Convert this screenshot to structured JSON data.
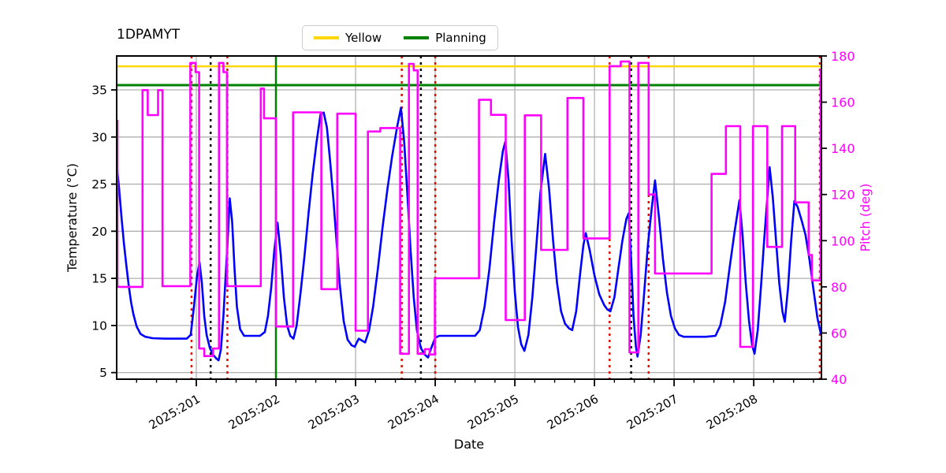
{
  "title": "1DPAMYT",
  "legend": {
    "items": [
      {
        "label": "Yellow",
        "color": "#ffd700"
      },
      {
        "label": "Planning",
        "color": "#008000"
      }
    ]
  },
  "axes": {
    "x": {
      "label": "Date",
      "range": [
        200.0,
        208.85
      ],
      "major_ticks": [
        201,
        202,
        203,
        204,
        205,
        206,
        207,
        208
      ],
      "tick_labels": [
        "2025:201",
        "2025:202",
        "2025:203",
        "2025:204",
        "2025:205",
        "2025:206",
        "2025:207",
        "2025:208"
      ],
      "minor_step": 0.25
    },
    "y_left": {
      "label": "Temperature (°C)",
      "range": [
        4.3,
        38.6
      ],
      "ticks": [
        5,
        10,
        15,
        20,
        25,
        30,
        35
      ],
      "color": "#000000"
    },
    "y_right": {
      "label": "Pitch (deg)",
      "range": [
        40,
        180
      ],
      "ticks": [
        40,
        60,
        80,
        100,
        120,
        140,
        160,
        180
      ],
      "color": "#ff00ff"
    }
  },
  "chart_data": {
    "type": "line",
    "series": [
      {
        "name": "Temperature",
        "axis": "left",
        "color": "#0000ff",
        "mode": "linear",
        "x": [
          200.0,
          200.03,
          200.06,
          200.09,
          200.12,
          200.15,
          200.18,
          200.21,
          200.25,
          200.3,
          200.36,
          200.45,
          200.6,
          200.75,
          200.88,
          200.93,
          200.97,
          201.01,
          201.04,
          201.07,
          201.1,
          201.13,
          201.17,
          201.21,
          201.25,
          201.28,
          201.31,
          201.34,
          201.37,
          201.4,
          201.42,
          201.45,
          201.48,
          201.51,
          201.55,
          201.6,
          201.7,
          201.8,
          201.86,
          201.9,
          201.94,
          201.98,
          202.02,
          202.06,
          202.1,
          202.14,
          202.18,
          202.22,
          202.26,
          202.31,
          202.36,
          202.41,
          202.46,
          202.51,
          202.56,
          202.6,
          202.64,
          202.68,
          202.72,
          202.76,
          202.8,
          202.85,
          202.9,
          202.95,
          202.99,
          203.04,
          203.08,
          203.12,
          203.17,
          203.22,
          203.28,
          203.34,
          203.4,
          203.46,
          203.52,
          203.57,
          203.61,
          203.65,
          203.69,
          203.73,
          203.77,
          203.82,
          203.87,
          203.91,
          203.95,
          204.0,
          204.05,
          204.2,
          204.35,
          204.5,
          204.56,
          204.62,
          204.68,
          204.74,
          204.8,
          204.85,
          204.88,
          204.92,
          204.96,
          205.0,
          205.04,
          205.08,
          205.12,
          205.17,
          205.22,
          205.27,
          205.32,
          205.38,
          205.43,
          205.48,
          205.53,
          205.58,
          205.63,
          205.68,
          205.72,
          205.77,
          205.82,
          205.86,
          205.89,
          205.94,
          206.0,
          206.06,
          206.12,
          206.16,
          206.2,
          206.25,
          206.3,
          206.35,
          206.4,
          206.43,
          206.46,
          206.49,
          206.52,
          206.54,
          206.58,
          206.62,
          206.67,
          206.72,
          206.76,
          206.81,
          206.86,
          206.91,
          206.96,
          207.01,
          207.06,
          207.12,
          207.25,
          207.4,
          207.52,
          207.58,
          207.64,
          207.7,
          207.76,
          207.82,
          207.86,
          207.9,
          207.94,
          207.98,
          208.01,
          208.05,
          208.09,
          208.13,
          208.17,
          208.2,
          208.24,
          208.28,
          208.32,
          208.36,
          208.39,
          208.43,
          208.47,
          208.51,
          208.55,
          208.6,
          208.65,
          208.7,
          208.75,
          208.8,
          208.84,
          208.85
        ],
        "y": [
          27.1,
          24.6,
          21.5,
          18.8,
          16.5,
          14.3,
          12.5,
          11.2,
          9.9,
          9.1,
          8.8,
          8.65,
          8.6,
          8.6,
          8.6,
          9.0,
          12.0,
          15.3,
          16.7,
          14.5,
          11.0,
          9.0,
          7.6,
          6.9,
          6.5,
          6.3,
          7.5,
          11.0,
          15.5,
          20.0,
          23.5,
          21.0,
          16.0,
          12.0,
          9.6,
          8.9,
          8.9,
          8.9,
          9.3,
          11.0,
          14.0,
          18.0,
          20.9,
          17.5,
          13.0,
          10.0,
          8.9,
          8.6,
          10.0,
          13.5,
          17.5,
          22.0,
          26.0,
          29.5,
          32.4,
          32.6,
          31.0,
          27.5,
          23.5,
          19.0,
          14.5,
          10.5,
          8.5,
          7.9,
          7.75,
          8.6,
          8.4,
          8.2,
          9.5,
          12.0,
          16.0,
          20.5,
          24.5,
          28.0,
          31.0,
          33.1,
          29.5,
          24.0,
          18.0,
          13.0,
          9.5,
          7.6,
          6.9,
          6.6,
          7.6,
          8.7,
          8.9,
          8.9,
          8.9,
          8.9,
          9.5,
          12.0,
          16.0,
          21.0,
          25.5,
          28.5,
          29.5,
          25.5,
          19.0,
          13.5,
          9.8,
          8.0,
          7.3,
          9.0,
          13.0,
          18.5,
          24.0,
          28.2,
          24.5,
          19.0,
          14.5,
          11.5,
          10.2,
          9.7,
          9.5,
          11.5,
          15.5,
          18.5,
          19.8,
          18.0,
          15.3,
          13.3,
          12.2,
          11.7,
          11.5,
          13.0,
          16.0,
          19.0,
          21.3,
          21.9,
          17.0,
          11.0,
          7.8,
          6.7,
          9.0,
          13.0,
          18.5,
          22.5,
          25.4,
          21.5,
          17.0,
          13.5,
          11.0,
          9.7,
          9.0,
          8.8,
          8.8,
          8.8,
          8.9,
          10.0,
          12.5,
          16.3,
          20.0,
          23.3,
          19.5,
          14.5,
          10.5,
          7.9,
          7.0,
          9.5,
          14.0,
          19.0,
          23.5,
          26.8,
          23.5,
          19.0,
          14.5,
          11.5,
          10.4,
          14.0,
          19.0,
          23.2,
          22.6,
          21.2,
          19.6,
          17.0,
          13.8,
          10.8,
          9.2,
          9.0
        ]
      },
      {
        "name": "Pitch",
        "axis": "right",
        "color": "#ff00ff",
        "mode": "step-post",
        "end_x": 208.85,
        "steps": [
          [
            200.0,
            152
          ],
          [
            200.01,
            80
          ],
          [
            200.325,
            165.2
          ],
          [
            200.39,
            154.4
          ],
          [
            200.52,
            165.2
          ],
          [
            200.575,
            80.3
          ],
          [
            200.925,
            177
          ],
          [
            200.99,
            173
          ],
          [
            201.035,
            53.3
          ],
          [
            201.1,
            50
          ],
          [
            201.21,
            53.3
          ],
          [
            201.285,
            177
          ],
          [
            201.34,
            173
          ],
          [
            201.385,
            80.3
          ],
          [
            201.81,
            165.9
          ],
          [
            201.85,
            153
          ],
          [
            202.0,
            62.8
          ],
          [
            202.215,
            155.6
          ],
          [
            202.57,
            79
          ],
          [
            202.77,
            155
          ],
          [
            203.0,
            61
          ],
          [
            203.155,
            147.3
          ],
          [
            203.31,
            148.8
          ],
          [
            203.56,
            51
          ],
          [
            203.67,
            176.6
          ],
          [
            203.73,
            173.8
          ],
          [
            203.78,
            51
          ],
          [
            203.87,
            53
          ],
          [
            203.93,
            50.7
          ],
          [
            203.995,
            83.7
          ],
          [
            204.55,
            161
          ],
          [
            204.7,
            154.5
          ],
          [
            204.885,
            65.6
          ],
          [
            205.125,
            154.3
          ],
          [
            205.33,
            96
          ],
          [
            205.66,
            161.8
          ],
          [
            205.86,
            101
          ],
          [
            206.19,
            175.6
          ],
          [
            206.33,
            177.6
          ],
          [
            206.44,
            51.6
          ],
          [
            206.55,
            177
          ],
          [
            206.68,
            120
          ],
          [
            206.76,
            85.8
          ],
          [
            207.47,
            128.9
          ],
          [
            207.65,
            149.6
          ],
          [
            207.83,
            54
          ],
          [
            207.99,
            149.6
          ],
          [
            208.17,
            97.3
          ],
          [
            208.355,
            149.6
          ],
          [
            208.52,
            116.6
          ],
          [
            208.69,
            93.8
          ],
          [
            208.73,
            82.8
          ],
          [
            208.84,
            174
          ]
        ]
      }
    ],
    "hlines": [
      {
        "name": "Yellow",
        "value": 37.5,
        "axis": "left",
        "color": "#ffd700",
        "style": "solid",
        "width": 2.5
      },
      {
        "name": "Planning",
        "value": 35.5,
        "axis": "left",
        "color": "#008000",
        "style": "solid",
        "width": 3
      }
    ],
    "vlines": [
      {
        "x": 202.0,
        "color": "#008000",
        "style": "solid",
        "name": "planning-vline"
      },
      {
        "x": 200.94,
        "color": "#dd1100",
        "style": "dotted",
        "name": "event-red"
      },
      {
        "x": 201.18,
        "color": "#000000",
        "style": "dotted",
        "name": "event-black"
      },
      {
        "x": 201.39,
        "color": "#dd1100",
        "style": "dotted",
        "name": "event-red"
      },
      {
        "x": 203.58,
        "color": "#dd1100",
        "style": "dotted",
        "name": "event-red"
      },
      {
        "x": 203.82,
        "color": "#000000",
        "style": "dotted",
        "name": "event-black"
      },
      {
        "x": 204.0,
        "color": "#dd1100",
        "style": "dotted",
        "name": "event-red"
      },
      {
        "x": 206.19,
        "color": "#dd1100",
        "style": "dotted",
        "name": "event-red"
      },
      {
        "x": 206.46,
        "color": "#000000",
        "style": "dotted",
        "name": "event-black"
      },
      {
        "x": 206.68,
        "color": "#dd1100",
        "style": "dotted",
        "name": "event-red"
      },
      {
        "x": 208.83,
        "color": "#dd1100",
        "style": "dotted",
        "name": "event-red"
      }
    ],
    "grid": true,
    "legend_position": "top-center"
  }
}
